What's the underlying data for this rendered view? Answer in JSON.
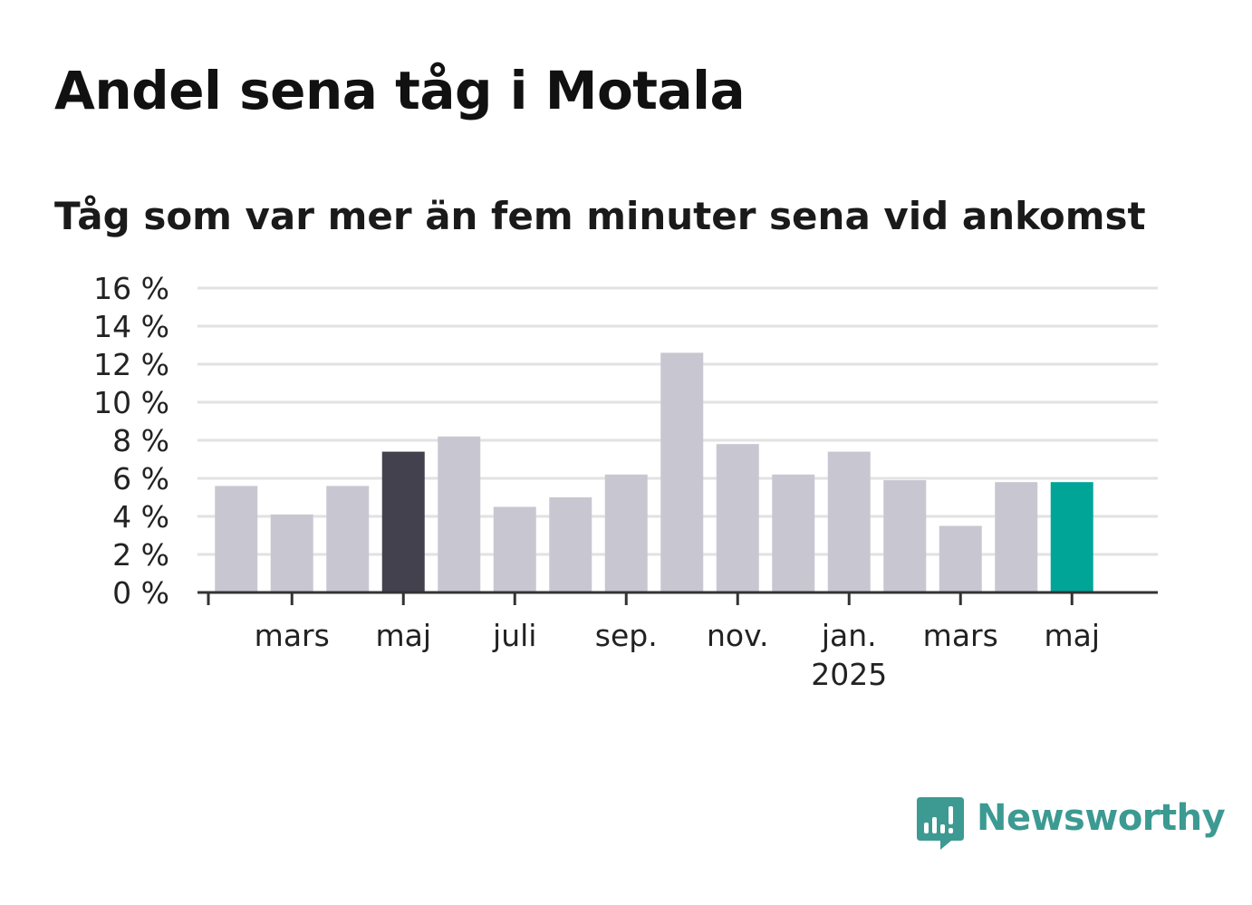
{
  "title": "Andel sena tåg i Motala",
  "subtitle": "Tåg som var mer än fem minuter sena vid ankomst",
  "brand": {
    "name": "Newsworthy",
    "color": "#3c9a92",
    "icon": "newsworthy-chart-bubble-icon"
  },
  "chart_data": {
    "type": "bar",
    "title": "Andel sena tåg i Motala",
    "subtitle": "Tåg som var mer än fem minuter sena vid ankomst",
    "ylim": [
      0,
      16
    ],
    "y_ticks": [
      0,
      2,
      4,
      6,
      8,
      10,
      12,
      14,
      16
    ],
    "y_tick_labels": [
      "0 %",
      "2 %",
      "4 %",
      "6 %",
      "8 %",
      "10 %",
      "12 %",
      "14 %",
      "16 %"
    ],
    "unit": "%",
    "grid": true,
    "x_tick_labels": [
      {
        "index": 1.5,
        "label": "mars",
        "sub": ""
      },
      {
        "index": 3.5,
        "label": "maj",
        "sub": ""
      },
      {
        "index": 5.5,
        "label": "juli",
        "sub": ""
      },
      {
        "index": 7.5,
        "label": "sep.",
        "sub": ""
      },
      {
        "index": 9.5,
        "label": "nov.",
        "sub": ""
      },
      {
        "index": 11.5,
        "label": "jan.",
        "sub": "2025"
      },
      {
        "index": 13.5,
        "label": "mars",
        "sub": ""
      },
      {
        "index": 15.5,
        "label": "maj",
        "sub": ""
      }
    ],
    "values": [
      5.6,
      4.1,
      5.6,
      7.4,
      8.2,
      4.5,
      5.0,
      6.2,
      12.6,
      7.8,
      6.2,
      7.4,
      5.9,
      3.5,
      5.8,
      5.8
    ],
    "colors": {
      "default": "#c8c7d1",
      "highlight_previous": "#43414d",
      "highlight_current": "#00a598",
      "grid": "#e2e2e2",
      "axis": "#333333"
    },
    "highlight_previous_index": 3,
    "highlight_current_index": 15
  }
}
